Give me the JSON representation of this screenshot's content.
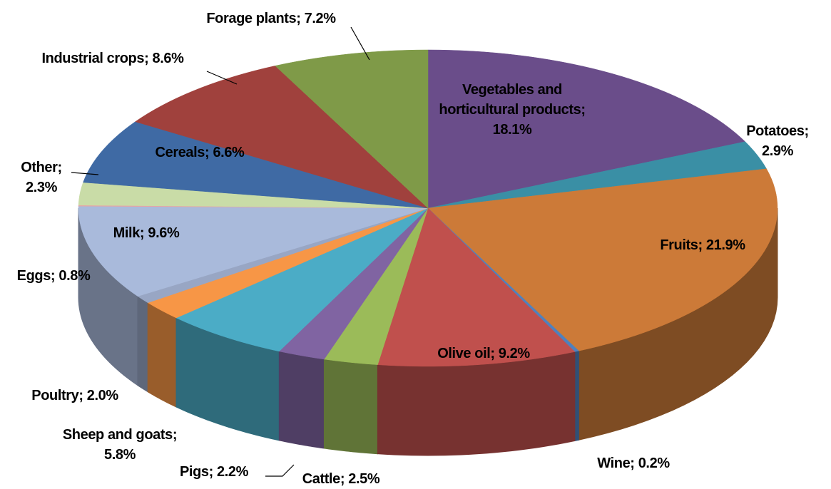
{
  "chart_data": {
    "type": "pie",
    "values": [
      18.1,
      2.9,
      21.9,
      0.2,
      9.2,
      2.5,
      2.2,
      5.8,
      2.0,
      0.8,
      9.6,
      0.1,
      2.3,
      6.6,
      8.6,
      7.2
    ],
    "value_labels": [
      "Vegetables and horticultural products; 18.1%",
      "Potatoes; 2.9%",
      "Fruits; 21.9%",
      "Wine; 0.2%",
      "Olive oil; 9.2%",
      "Cattle; 2.5%",
      "Pigs; 2.2%",
      "Sheep and goats; 5.8%",
      "Poultry; 2.0%",
      "Eggs; 0.8%",
      "Milk; 9.6%",
      null,
      "Other; 2.3%",
      "Cereals; 6.6%",
      "Industrial crops; 8.6%",
      "Forage plants; 7.2%"
    ],
    "colors": [
      "#6a4d8a",
      "#3a8fa5",
      "#cc7a38",
      "#4f81bd",
      "#c0504d",
      "#9bbb59",
      "#8064a2",
      "#4bacc6",
      "#f79646",
      "#98a6c4",
      "#a9badb",
      "#e6a5a5",
      "#c9dca7",
      "#3f6aa4",
      "#a0413d",
      "#7f9a48"
    ]
  }
}
